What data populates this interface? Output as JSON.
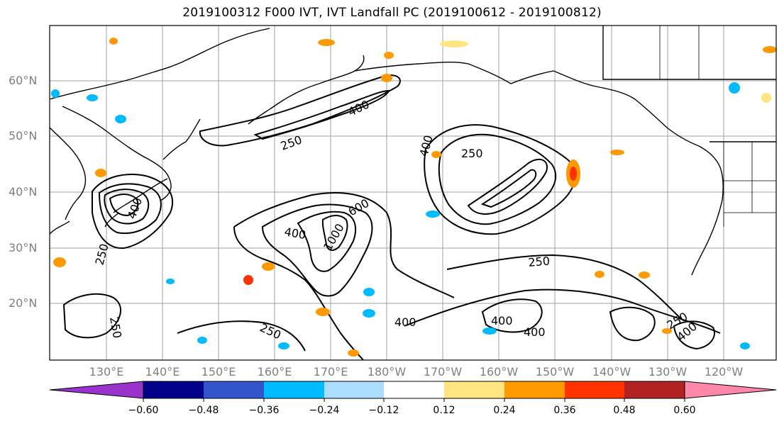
{
  "title": "2019100312 F000 IVT, IVT Landfall PC (2019100612 - 2019100812)",
  "lat_labels": [
    "60°N",
    "50°N",
    "40°N",
    "30°N",
    "20°N"
  ],
  "lon_labels": [
    "130°E",
    "140°E",
    "150°E",
    "160°E",
    "170°E",
    "180°W",
    "170°W",
    "160°W",
    "150°W",
    "140°W",
    "130°W",
    "120°W"
  ],
  "contour_labels": [
    "400",
    "250",
    "250",
    "400",
    "400",
    "400",
    "1000",
    "600",
    "250",
    "250",
    "400",
    "400",
    "400",
    "250",
    "250",
    "400",
    "250"
  ],
  "colorbar": {
    "tick_labels": [
      "−0.60",
      "−0.48",
      "−0.36",
      "−0.24",
      "−0.12",
      "0.12",
      "0.24",
      "0.36",
      "0.48",
      "0.60"
    ],
    "colors": [
      "#9933cc",
      "#000088",
      "#3355cc",
      "#00bbff",
      "#aaddff",
      "#ffffff",
      "#ffe680",
      "#ff9900",
      "#ff3300",
      "#b22222",
      "#ff88aa"
    ]
  },
  "colors": {
    "grid": "#a0a0a0",
    "coast": "#000000",
    "ivt_contour": "#000000",
    "axis_label": "#808080"
  }
}
